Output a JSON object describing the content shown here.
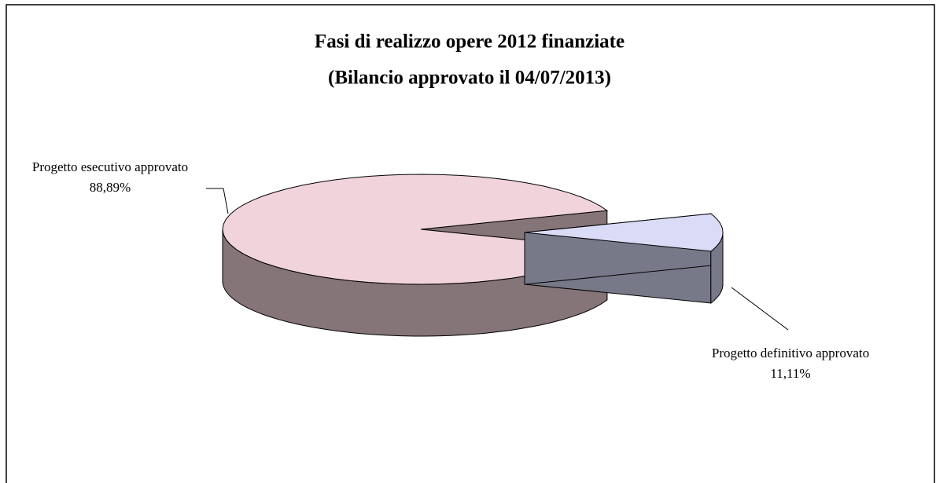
{
  "chart_data": {
    "type": "pie",
    "title": [
      "Fasi di realizzo opere 2012 finanziate",
      "(Bilancio approvato il 04/07/2013)"
    ],
    "categories": [
      "Progetto esecutivo approvato",
      "Progetto definitivo approvato"
    ],
    "values": [
      88.89,
      11.11
    ],
    "value_labels": [
      "88,89%",
      "11,11%"
    ],
    "colors": [
      "#f1d3db",
      "#dadcf7"
    ],
    "exploded": [
      false,
      true
    ],
    "three_d": true
  }
}
